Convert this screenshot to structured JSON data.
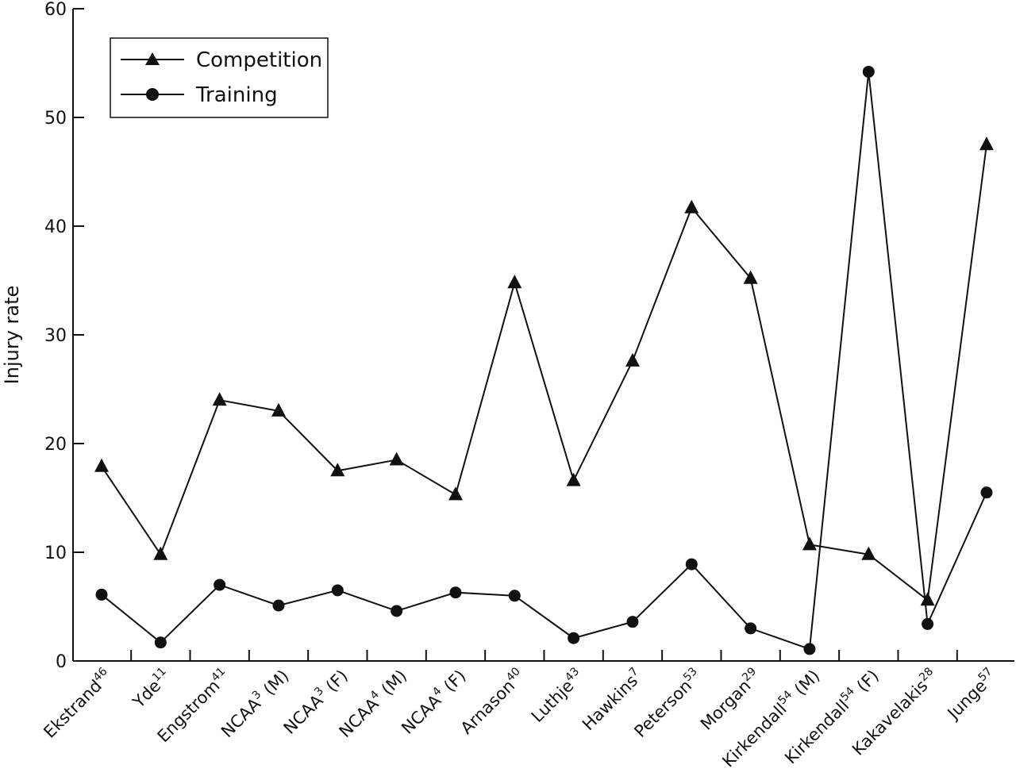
{
  "chart_data": {
    "type": "line",
    "ylabel": "Injury rate",
    "xlabel": "",
    "ylim": [
      0,
      60
    ],
    "yticks": [
      0,
      10,
      20,
      30,
      40,
      50,
      60
    ],
    "grid": false,
    "legend": "top-left",
    "categories": [
      {
        "name": "Ekstrand",
        "sup": "46",
        "suffix": ""
      },
      {
        "name": "Yde",
        "sup": "11",
        "suffix": ""
      },
      {
        "name": "Engstrom",
        "sup": "41",
        "suffix": ""
      },
      {
        "name": "NCAA",
        "sup": "3",
        "suffix": " (M)"
      },
      {
        "name": "NCAA",
        "sup": "3",
        "suffix": " (F)"
      },
      {
        "name": "NCAA",
        "sup": "4",
        "suffix": " (M)"
      },
      {
        "name": "NCAA",
        "sup": "4",
        "suffix": " (F)"
      },
      {
        "name": "Arnason",
        "sup": "40",
        "suffix": ""
      },
      {
        "name": "Luthje",
        "sup": "43",
        "suffix": ""
      },
      {
        "name": "Hawkins",
        "sup": "7",
        "suffix": ""
      },
      {
        "name": "Peterson",
        "sup": "53",
        "suffix": ""
      },
      {
        "name": "Morgan",
        "sup": "29",
        "suffix": ""
      },
      {
        "name": "Kirkendall",
        "sup": "54",
        "suffix": " (M)"
      },
      {
        "name": "Kirkendall",
        "sup": "54",
        "suffix": " (F)"
      },
      {
        "name": "Kakavelakis",
        "sup": "28",
        "suffix": ""
      },
      {
        "name": "Junge",
        "sup": "57",
        "suffix": ""
      }
    ],
    "series": [
      {
        "name": "Competition",
        "marker": "triangle",
        "values": [
          17.9,
          9.8,
          24.0,
          23.0,
          17.5,
          18.5,
          15.3,
          34.8,
          16.6,
          27.6,
          41.7,
          35.2,
          10.7,
          9.8,
          5.6,
          47.5
        ]
      },
      {
        "name": "Training",
        "marker": "circle",
        "values": [
          6.1,
          1.7,
          7.0,
          5.1,
          6.5,
          4.6,
          6.3,
          6.0,
          2.1,
          3.6,
          8.9,
          3.0,
          1.1,
          54.2,
          3.4,
          15.5
        ]
      }
    ]
  }
}
